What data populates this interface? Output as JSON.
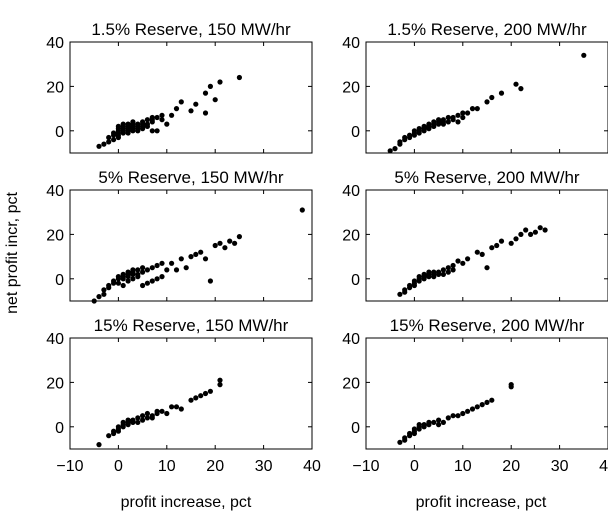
{
  "figure": {
    "ylabel": "net profit incr, pct",
    "xlabel": "profit increase, pct"
  },
  "chart_data": [
    {
      "type": "scatter",
      "title": "1.5% Reserve, 150 MW/hr",
      "xlim": [
        -10,
        40
      ],
      "ylim": [
        -10,
        40
      ],
      "xticks": [
        -10,
        0,
        10,
        20,
        30,
        40
      ],
      "yticks": [
        0,
        20,
        40
      ],
      "x": [
        -4,
        -3,
        -2,
        -2,
        -1,
        -1,
        -1,
        0,
        0,
        0,
        0,
        0,
        0,
        1,
        1,
        1,
        1,
        1,
        2,
        2,
        2,
        2,
        2,
        3,
        3,
        3,
        3,
        3,
        4,
        4,
        4,
        4,
        5,
        5,
        5,
        5,
        6,
        6,
        6,
        7,
        7,
        7,
        7,
        8,
        8,
        9,
        9,
        10,
        11,
        12,
        13,
        15,
        16,
        18,
        18,
        19,
        20,
        21,
        25
      ],
      "y": [
        -7,
        -6,
        -5,
        -3,
        -4,
        -2,
        -1,
        -3,
        -1,
        0,
        1,
        2,
        -2,
        -1,
        0,
        1,
        2,
        3,
        -1,
        0,
        1,
        2,
        3,
        0,
        1,
        2,
        3,
        4,
        0,
        1,
        2,
        3,
        1,
        2,
        3,
        4,
        2,
        3,
        5,
        0,
        4,
        5,
        6,
        0,
        6,
        5,
        7,
        3,
        7,
        10,
        13,
        9,
        12,
        17,
        8,
        20,
        14,
        22,
        24
      ]
    },
    {
      "type": "scatter",
      "title": "1.5% Reserve, 200 MW/hr",
      "xlim": [
        -10,
        40
      ],
      "ylim": [
        -10,
        40
      ],
      "xticks": [
        -10,
        0,
        10,
        20,
        30,
        40
      ],
      "yticks": [
        0,
        20,
        40
      ],
      "x": [
        -5,
        -4,
        -3,
        -3,
        -2,
        -2,
        -1,
        -1,
        0,
        0,
        0,
        1,
        1,
        1,
        2,
        2,
        2,
        3,
        3,
        3,
        4,
        4,
        4,
        5,
        5,
        5,
        6,
        6,
        6,
        7,
        7,
        8,
        8,
        9,
        9,
        10,
        10,
        11,
        12,
        13,
        15,
        16,
        18,
        21,
        22,
        35
      ],
      "y": [
        -9,
        -8,
        -6,
        -5,
        -4,
        -3,
        -3,
        -2,
        -2,
        -1,
        0,
        -1,
        0,
        1,
        0,
        1,
        2,
        1,
        2,
        3,
        2,
        3,
        4,
        3,
        4,
        5,
        3,
        4,
        5,
        4,
        6,
        5,
        6,
        4,
        7,
        6,
        8,
        8,
        10,
        10,
        13,
        15,
        17,
        21,
        19,
        34
      ]
    },
    {
      "type": "scatter",
      "title": "5% Reserve, 150 MW/hr",
      "xlim": [
        -10,
        40
      ],
      "ylim": [
        -10,
        40
      ],
      "xticks": [
        -10,
        0,
        10,
        20,
        30,
        40
      ],
      "yticks": [
        0,
        20,
        40
      ],
      "x": [
        -5,
        -4,
        -3,
        -3,
        -2,
        -2,
        -1,
        -1,
        0,
        0,
        0,
        1,
        1,
        1,
        1,
        2,
        2,
        2,
        2,
        3,
        3,
        3,
        3,
        4,
        4,
        4,
        5,
        5,
        5,
        6,
        6,
        7,
        7,
        8,
        8,
        9,
        9,
        10,
        11,
        12,
        13,
        14,
        15,
        16,
        17,
        18,
        19,
        20,
        21,
        22,
        23,
        24,
        25,
        38
      ],
      "y": [
        -10,
        -8,
        -7,
        -5,
        -4,
        -3,
        -2,
        -1,
        -2,
        0,
        1,
        -3,
        0,
        1,
        2,
        -1,
        1,
        2,
        3,
        0,
        2,
        3,
        4,
        1,
        2,
        4,
        -3,
        3,
        5,
        -2,
        4,
        -1,
        5,
        0,
        6,
        1,
        7,
        4,
        7,
        4,
        9,
        5,
        10,
        11,
        12,
        9,
        -1,
        15,
        16,
        14,
        17,
        16,
        19,
        31
      ]
    },
    {
      "type": "scatter",
      "title": "5% Reserve, 200 MW/hr",
      "xlim": [
        -10,
        40
      ],
      "ylim": [
        -10,
        40
      ],
      "xticks": [
        -10,
        0,
        10,
        20,
        30,
        40
      ],
      "yticks": [
        0,
        20,
        40
      ],
      "x": [
        -3,
        -2,
        -2,
        -1,
        -1,
        0,
        0,
        0,
        1,
        1,
        1,
        2,
        2,
        2,
        3,
        3,
        3,
        4,
        4,
        4,
        5,
        5,
        6,
        6,
        7,
        7,
        8,
        8,
        9,
        10,
        11,
        13,
        14,
        15,
        16,
        17,
        18,
        20,
        21,
        22,
        23,
        24,
        25,
        26,
        27
      ],
      "y": [
        -7,
        -6,
        -5,
        -4,
        -3,
        -3,
        -2,
        -1,
        -1,
        0,
        1,
        0,
        1,
        2,
        1,
        2,
        3,
        1,
        2,
        3,
        2,
        3,
        2,
        4,
        3,
        5,
        4,
        6,
        8,
        7,
        9,
        12,
        11,
        5,
        14,
        15,
        17,
        16,
        18,
        20,
        22,
        20,
        21,
        23,
        22
      ]
    },
    {
      "type": "scatter",
      "title": "15% Reserve, 150 MW/hr",
      "xlim": [
        -10,
        40
      ],
      "ylim": [
        -10,
        40
      ],
      "xticks": [
        -10,
        0,
        10,
        20,
        30,
        40
      ],
      "yticks": [
        0,
        20,
        40
      ],
      "x": [
        -4,
        -2,
        -1,
        -1,
        0,
        0,
        0,
        1,
        1,
        1,
        2,
        2,
        2,
        3,
        3,
        4,
        4,
        5,
        5,
        6,
        6,
        7,
        7,
        8,
        8,
        9,
        10,
        11,
        12,
        13,
        15,
        16,
        17,
        18,
        19,
        21,
        21
      ],
      "y": [
        -8,
        -4,
        -3,
        -2,
        -2,
        -1,
        0,
        0,
        1,
        2,
        1,
        2,
        3,
        2,
        3,
        2,
        4,
        3,
        5,
        4,
        6,
        4,
        5,
        6,
        7,
        7,
        6,
        9,
        9,
        8,
        12,
        13,
        14,
        15,
        16,
        19,
        21
      ]
    },
    {
      "type": "scatter",
      "title": "15% Reserve, 200 MW/hr",
      "xlim": [
        -10,
        40
      ],
      "ylim": [
        -10,
        40
      ],
      "xticks": [
        -10,
        0,
        10,
        20,
        30,
        40
      ],
      "yticks": [
        0,
        20,
        40
      ],
      "x": [
        -3,
        -2,
        -2,
        -1,
        -1,
        0,
        0,
        0,
        1,
        1,
        1,
        2,
        2,
        3,
        3,
        4,
        5,
        5,
        6,
        7,
        8,
        9,
        10,
        11,
        12,
        13,
        14,
        15,
        16,
        20,
        20
      ],
      "y": [
        -7,
        -6,
        -5,
        -4,
        -3,
        -3,
        -2,
        -1,
        -1,
        0,
        1,
        0,
        1,
        1,
        2,
        2,
        1,
        3,
        2,
        4,
        5,
        5,
        6,
        7,
        8,
        9,
        10,
        11,
        12,
        18,
        19
      ]
    }
  ]
}
